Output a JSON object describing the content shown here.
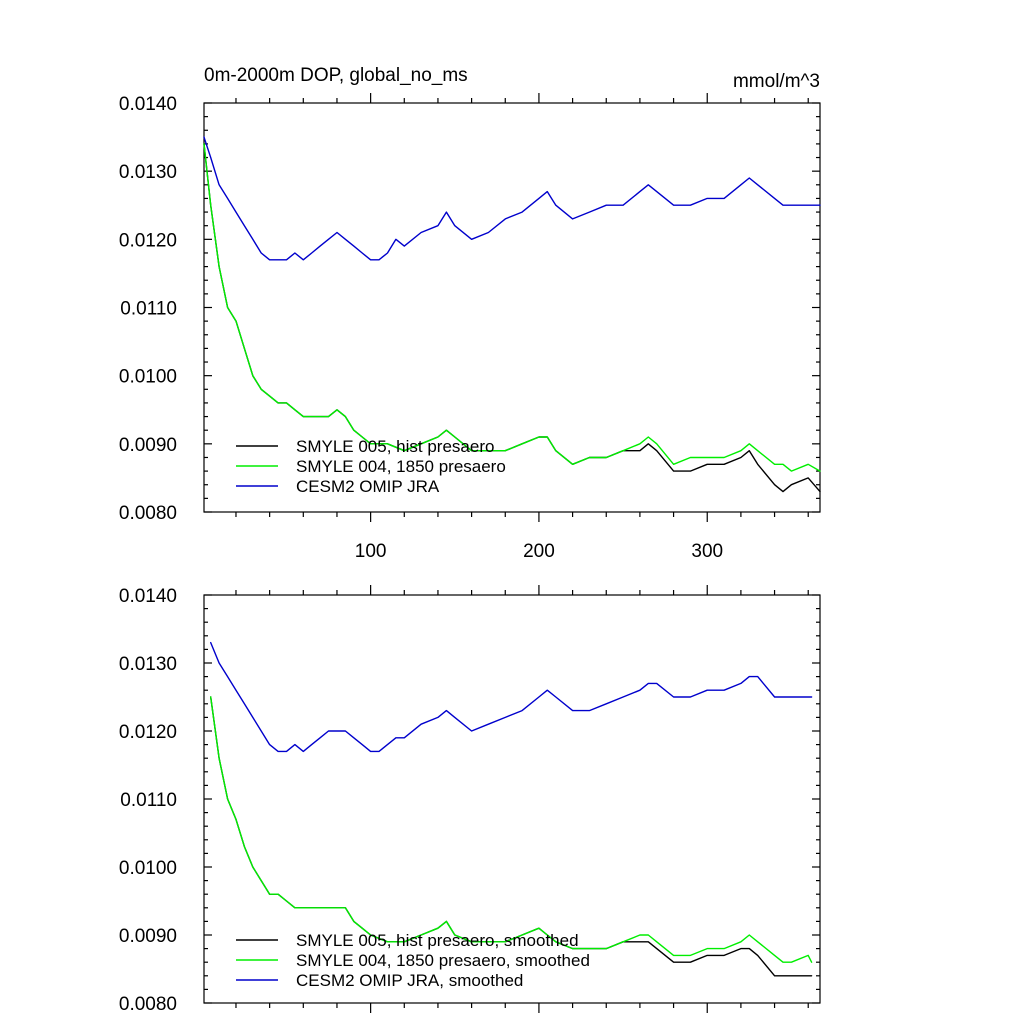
{
  "figure": {
    "title": "0m-2000m DOP, global_no_ms",
    "units": "mmol/m^3"
  },
  "colors": {
    "hist": "#000000",
    "pre1850": "#00ee00",
    "omip": "#0000cc"
  },
  "chart_data": [
    {
      "type": "line",
      "title": "0m-2000m DOP, global_no_ms",
      "units_label": "mmol/m^3",
      "xlabel": "",
      "ylabel": "",
      "xlim": [
        1,
        367
      ],
      "ylim": [
        0.008,
        0.014
      ],
      "y_ticks": [
        "0.0080",
        "0.0090",
        "0.0100",
        "0.0110",
        "0.0120",
        "0.0130",
        "0.0140"
      ],
      "x_ticks": [
        "100",
        "200",
        "300"
      ],
      "legend_position": "bottom-left",
      "series": [
        {
          "name": "SMYLE 005, hist presaero",
          "color_key": "hist",
          "x": [
            1,
            5,
            10,
            15,
            20,
            25,
            30,
            35,
            40,
            45,
            50,
            55,
            60,
            65,
            70,
            75,
            80,
            85,
            90,
            95,
            100,
            110,
            120,
            130,
            140,
            145,
            150,
            160,
            170,
            180,
            190,
            200,
            205,
            210,
            220,
            230,
            240,
            250,
            260,
            265,
            270,
            280,
            290,
            300,
            310,
            320,
            325,
            330,
            340,
            345,
            350,
            360,
            367
          ],
          "values": [
            0.0134,
            0.0125,
            0.0116,
            0.011,
            0.0108,
            0.0104,
            0.01,
            0.0098,
            0.0097,
            0.0096,
            0.0096,
            0.0095,
            0.0094,
            0.0094,
            0.0094,
            0.0094,
            0.0095,
            0.0094,
            0.0092,
            0.0091,
            0.009,
            0.009,
            0.0089,
            0.009,
            0.0091,
            0.0092,
            0.0091,
            0.0089,
            0.0089,
            0.0089,
            0.009,
            0.0091,
            0.0091,
            0.0089,
            0.0087,
            0.0088,
            0.0088,
            0.0089,
            0.0089,
            0.009,
            0.0089,
            0.0086,
            0.0086,
            0.0087,
            0.0087,
            0.0088,
            0.0089,
            0.0087,
            0.0084,
            0.0083,
            0.0084,
            0.0085,
            0.0083
          ]
        },
        {
          "name": "SMYLE 004, 1850 presaero",
          "color_key": "pre1850",
          "x": [
            1,
            5,
            10,
            15,
            20,
            25,
            30,
            35,
            40,
            45,
            50,
            55,
            60,
            65,
            70,
            75,
            80,
            85,
            90,
            95,
            100,
            110,
            120,
            130,
            140,
            145,
            150,
            160,
            170,
            180,
            190,
            200,
            205,
            210,
            220,
            230,
            240,
            250,
            260,
            265,
            270,
            280,
            290,
            300,
            310,
            320,
            325,
            330,
            340,
            345,
            350,
            360,
            367
          ],
          "values": [
            0.0134,
            0.0125,
            0.0116,
            0.011,
            0.0108,
            0.0104,
            0.01,
            0.0098,
            0.0097,
            0.0096,
            0.0096,
            0.0095,
            0.0094,
            0.0094,
            0.0094,
            0.0094,
            0.0095,
            0.0094,
            0.0092,
            0.0091,
            0.009,
            0.009,
            0.0089,
            0.009,
            0.0091,
            0.0092,
            0.0091,
            0.0089,
            0.0089,
            0.0089,
            0.009,
            0.0091,
            0.0091,
            0.0089,
            0.0087,
            0.0088,
            0.0088,
            0.0089,
            0.009,
            0.0091,
            0.009,
            0.0087,
            0.0088,
            0.0088,
            0.0088,
            0.0089,
            0.009,
            0.0089,
            0.0087,
            0.0087,
            0.0086,
            0.0087,
            0.0086
          ]
        },
        {
          "name": "CESM2 OMIP JRA",
          "color_key": "omip",
          "x": [
            1,
            5,
            10,
            15,
            20,
            25,
            30,
            35,
            40,
            45,
            50,
            55,
            60,
            65,
            70,
            75,
            80,
            85,
            90,
            95,
            100,
            105,
            110,
            115,
            120,
            130,
            140,
            145,
            150,
            160,
            170,
            180,
            190,
            200,
            205,
            210,
            220,
            230,
            240,
            250,
            260,
            265,
            270,
            280,
            290,
            300,
            310,
            320,
            325,
            330,
            340,
            345,
            350,
            360,
            367
          ],
          "values": [
            0.0135,
            0.0132,
            0.0128,
            0.0126,
            0.0124,
            0.0122,
            0.012,
            0.0118,
            0.0117,
            0.0117,
            0.0117,
            0.0118,
            0.0117,
            0.0118,
            0.0119,
            0.012,
            0.0121,
            0.012,
            0.0119,
            0.0118,
            0.0117,
            0.0117,
            0.0118,
            0.012,
            0.0119,
            0.0121,
            0.0122,
            0.0124,
            0.0122,
            0.012,
            0.0121,
            0.0123,
            0.0124,
            0.0126,
            0.0127,
            0.0125,
            0.0123,
            0.0124,
            0.0125,
            0.0125,
            0.0127,
            0.0128,
            0.0127,
            0.0125,
            0.0125,
            0.0126,
            0.0126,
            0.0128,
            0.0129,
            0.0128,
            0.0126,
            0.0125,
            0.0125,
            0.0125,
            0.0125
          ]
        }
      ]
    },
    {
      "type": "line",
      "title": "",
      "xlabel": "",
      "ylabel": "",
      "xlim": [
        1,
        367
      ],
      "ylim": [
        0.008,
        0.014
      ],
      "y_ticks": [
        "0.0080",
        "0.0090",
        "0.0100",
        "0.0110",
        "0.0120",
        "0.0130",
        "0.0140"
      ],
      "x_ticks": [],
      "legend_position": "bottom-left",
      "series": [
        {
          "name": "SMYLE 005, hist presaero, smoothed",
          "color_key": "hist",
          "x": [
            5,
            10,
            15,
            20,
            25,
            30,
            35,
            40,
            45,
            50,
            55,
            60,
            65,
            70,
            75,
            80,
            85,
            90,
            95,
            100,
            110,
            120,
            130,
            140,
            145,
            150,
            160,
            170,
            180,
            190,
            200,
            205,
            210,
            220,
            230,
            240,
            250,
            260,
            265,
            270,
            280,
            290,
            300,
            310,
            320,
            325,
            330,
            340,
            345,
            350,
            360,
            362
          ],
          "values": [
            0.0125,
            0.0116,
            0.011,
            0.0107,
            0.0103,
            0.01,
            0.0098,
            0.0096,
            0.0096,
            0.0095,
            0.0094,
            0.0094,
            0.0094,
            0.0094,
            0.0094,
            0.0094,
            0.0094,
            0.0092,
            0.0091,
            0.009,
            0.0089,
            0.0089,
            0.009,
            0.0091,
            0.0092,
            0.009,
            0.0089,
            0.0089,
            0.0089,
            0.009,
            0.0091,
            0.009,
            0.0089,
            0.0088,
            0.0088,
            0.0088,
            0.0089,
            0.0089,
            0.0089,
            0.0088,
            0.0086,
            0.0086,
            0.0087,
            0.0087,
            0.0088,
            0.0088,
            0.0087,
            0.0084,
            0.0084,
            0.0084,
            0.0084,
            0.0084
          ]
        },
        {
          "name": "SMYLE 004, 1850 presaero, smoothed",
          "color_key": "pre1850",
          "x": [
            5,
            10,
            15,
            20,
            25,
            30,
            35,
            40,
            45,
            50,
            55,
            60,
            65,
            70,
            75,
            80,
            85,
            90,
            95,
            100,
            110,
            120,
            130,
            140,
            145,
            150,
            160,
            170,
            180,
            190,
            200,
            205,
            210,
            220,
            230,
            240,
            250,
            260,
            265,
            270,
            280,
            290,
            300,
            310,
            320,
            325,
            330,
            340,
            345,
            350,
            360,
            362
          ],
          "values": [
            0.0125,
            0.0116,
            0.011,
            0.0107,
            0.0103,
            0.01,
            0.0098,
            0.0096,
            0.0096,
            0.0095,
            0.0094,
            0.0094,
            0.0094,
            0.0094,
            0.0094,
            0.0094,
            0.0094,
            0.0092,
            0.0091,
            0.009,
            0.0089,
            0.0089,
            0.009,
            0.0091,
            0.0092,
            0.009,
            0.0089,
            0.0089,
            0.0089,
            0.009,
            0.0091,
            0.009,
            0.0089,
            0.0088,
            0.0088,
            0.0088,
            0.0089,
            0.009,
            0.009,
            0.0089,
            0.0087,
            0.0087,
            0.0088,
            0.0088,
            0.0089,
            0.009,
            0.0089,
            0.0087,
            0.0086,
            0.0086,
            0.0087,
            0.0086
          ]
        },
        {
          "name": "CESM2 OMIP JRA, smoothed",
          "color_key": "omip",
          "x": [
            5,
            10,
            15,
            20,
            25,
            30,
            35,
            40,
            45,
            50,
            55,
            60,
            65,
            70,
            75,
            80,
            85,
            90,
            95,
            100,
            105,
            110,
            115,
            120,
            130,
            140,
            145,
            150,
            160,
            170,
            180,
            190,
            200,
            205,
            210,
            220,
            230,
            240,
            250,
            260,
            265,
            270,
            280,
            290,
            300,
            310,
            320,
            325,
            330,
            340,
            345,
            350,
            360,
            362
          ],
          "values": [
            0.0133,
            0.013,
            0.0128,
            0.0126,
            0.0124,
            0.0122,
            0.012,
            0.0118,
            0.0117,
            0.0117,
            0.0118,
            0.0117,
            0.0118,
            0.0119,
            0.012,
            0.012,
            0.012,
            0.0119,
            0.0118,
            0.0117,
            0.0117,
            0.0118,
            0.0119,
            0.0119,
            0.0121,
            0.0122,
            0.0123,
            0.0122,
            0.012,
            0.0121,
            0.0122,
            0.0123,
            0.0125,
            0.0126,
            0.0125,
            0.0123,
            0.0123,
            0.0124,
            0.0125,
            0.0126,
            0.0127,
            0.0127,
            0.0125,
            0.0125,
            0.0126,
            0.0126,
            0.0127,
            0.0128,
            0.0128,
            0.0125,
            0.0125,
            0.0125,
            0.0125,
            0.0125
          ]
        }
      ]
    }
  ]
}
